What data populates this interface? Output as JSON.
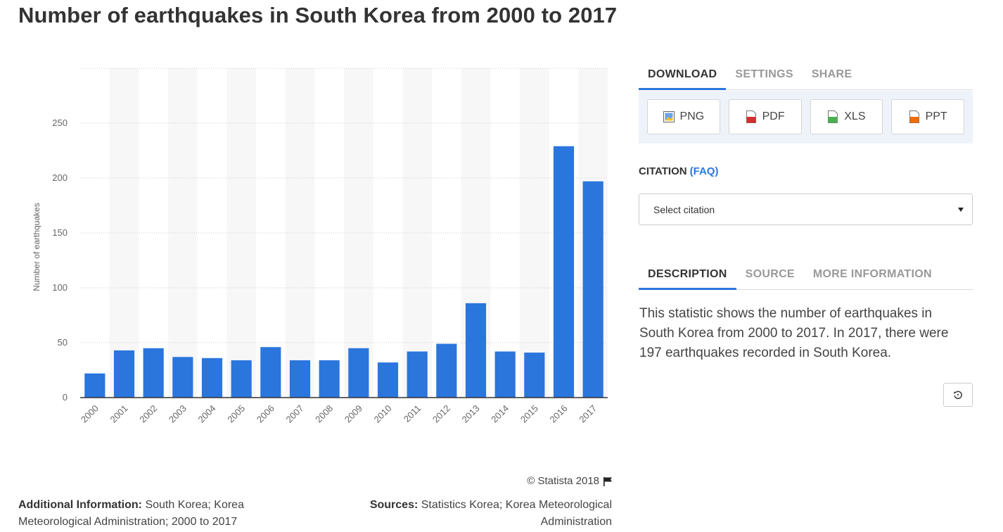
{
  "title": "Number of earthquakes in South Korea from 2000 to 2017",
  "chart_data": {
    "type": "bar",
    "title": "Number of earthquakes in South Korea from 2000 to 2017",
    "categories": [
      "2000",
      "2001",
      "2002",
      "2003",
      "2004",
      "2005",
      "2006",
      "2007",
      "2008",
      "2009",
      "2010",
      "2011",
      "2012",
      "2013",
      "2014",
      "2015",
      "2016",
      "2017"
    ],
    "values": [
      22,
      43,
      45,
      37,
      36,
      34,
      46,
      34,
      34,
      45,
      32,
      42,
      49,
      86,
      42,
      41,
      229,
      197
    ],
    "xlabel": "",
    "ylabel": "Number of earthquakes",
    "ylim": [
      0,
      300
    ],
    "yticks": [
      0,
      50,
      100,
      150,
      200,
      250
    ],
    "grid": true,
    "bar_color": "#2a76dd"
  },
  "footer": {
    "copyright": "© Statista 2018",
    "additional_label": "Additional Information:",
    "additional_text": "South Korea; Korea Meteorological Administration; 2000 to 2017",
    "sources_label": "Sources:",
    "sources_text": "Statistics Korea; Korea Meteorological Administration"
  },
  "panel": {
    "download_tabs": [
      "DOWNLOAD",
      "SETTINGS",
      "SHARE"
    ],
    "download_buttons": [
      {
        "label": "PNG",
        "icon": "png-file-icon",
        "color": "#3a7bd5"
      },
      {
        "label": "PDF",
        "icon": "pdf-file-icon",
        "color": "#d32f2f"
      },
      {
        "label": "XLS",
        "icon": "xls-file-icon",
        "color": "#4caf50"
      },
      {
        "label": "PPT",
        "icon": "ppt-file-icon",
        "color": "#ef6c00"
      }
    ],
    "citation_label": "CITATION",
    "citation_faq": "(FAQ)",
    "citation_placeholder": "Select citation",
    "info_tabs": [
      "DESCRIPTION",
      "SOURCE",
      "MORE INFORMATION"
    ],
    "description": "This statistic shows the number of earthquakes in South Korea from 2000 to 2017. In 2017, there were 197 earthquakes recorded in South Korea."
  }
}
